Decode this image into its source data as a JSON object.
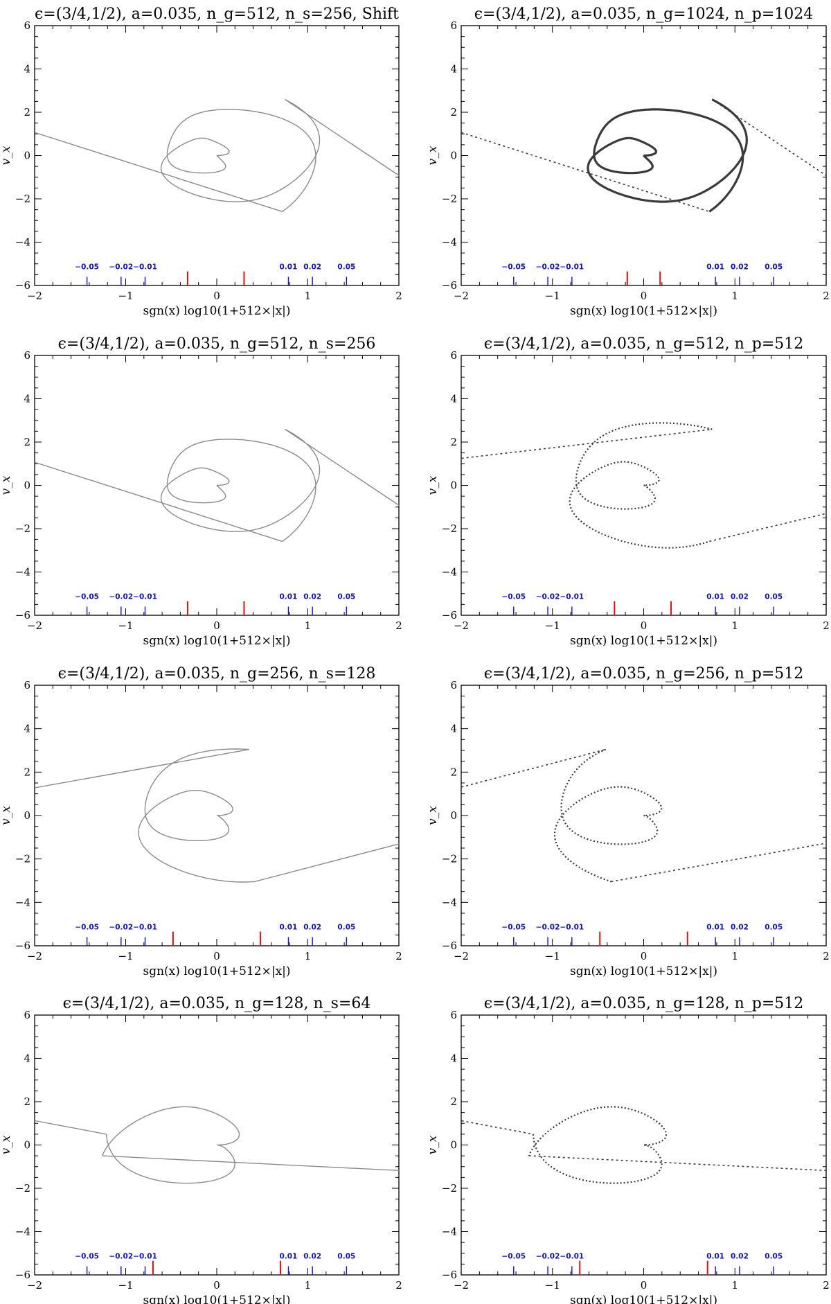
{
  "figure": {
    "xlabel": "sgn(x) log10(1+512×|x|)",
    "ylabel": "v_x",
    "xlim": [
      -2,
      2
    ],
    "ylim": [
      -6,
      6
    ],
    "xticks": [
      -2,
      -1,
      0,
      1,
      2
    ],
    "xtick_labels": [
      "−2",
      "−1",
      "0",
      "1",
      "2"
    ],
    "yticks": [
      -6,
      -4,
      -2,
      0,
      2,
      4,
      6
    ],
    "ytick_labels": [
      "−6",
      "−4",
      "−2",
      "0",
      "2",
      "4",
      "6"
    ]
  },
  "colors": {
    "sheet_curve": "#8a8a8a",
    "particles": "#3a3a3a",
    "grid_markers": "#e01010",
    "position_markers": "#1010d0",
    "axes": "#000000"
  },
  "position_markers": [
    {
      "label": "−0.05",
      "value": -0.05
    },
    {
      "label": "−0.02",
      "value": -0.02
    },
    {
      "label": "−0.01",
      "value": -0.01
    },
    {
      "label": "0.01",
      "value": 0.01
    },
    {
      "label": "0.02",
      "value": 0.02
    },
    {
      "label": "0.05",
      "value": 0.05
    }
  ],
  "chart_data": [
    {
      "type": "line",
      "method": "sheet",
      "title": "ϵ=(3/4,1/2), a=0.035, n_g=512, n_s=256, Shift",
      "ng": 512,
      "ns": 256,
      "shift": true,
      "red_markers_x": [
        -0.32,
        0.3
      ],
      "spiral_turns": 2.3
    },
    {
      "type": "scatter",
      "method": "particles",
      "title": "ϵ=(3/4,1/2), a=0.035, n_g=1024, n_p=1024",
      "ng": 1024,
      "np": 1024,
      "red_markers_x": [
        -0.18,
        0.18
      ],
      "spiral_turns": 2.3
    },
    {
      "type": "line",
      "method": "sheet",
      "title": "ϵ=(3/4,1/2), a=0.035, n_g=512, n_s=256",
      "ng": 512,
      "ns": 256,
      "shift": false,
      "red_markers_x": [
        -0.32,
        0.3
      ],
      "spiral_turns": 2.3
    },
    {
      "type": "scatter",
      "method": "particles",
      "title": "ϵ=(3/4,1/2), a=0.035, n_g=512, n_p=512",
      "ng": 512,
      "np": 512,
      "red_markers_x": [
        -0.32,
        0.3
      ],
      "spiral_turns": 1.7
    },
    {
      "type": "line",
      "method": "sheet",
      "title": "ϵ=(3/4,1/2), a=0.035, n_g=256, n_s=128",
      "ng": 256,
      "ns": 128,
      "shift": false,
      "red_markers_x": [
        -0.48,
        0.48
      ],
      "spiral_turns": 1.6
    },
    {
      "type": "scatter",
      "method": "particles",
      "title": "ϵ=(3/4,1/2), a=0.035, n_g=256, n_p=512",
      "ng": 256,
      "np": 512,
      "red_markers_x": [
        -0.48,
        0.48
      ],
      "spiral_turns": 1.4
    },
    {
      "type": "line",
      "method": "sheet",
      "title": "ϵ=(3/4,1/2), a=0.035, n_g=128, n_s=64",
      "ng": 128,
      "ns": 64,
      "shift": false,
      "red_markers_x": [
        -0.7,
        0.7
      ],
      "spiral_turns": 1.05
    },
    {
      "type": "scatter",
      "method": "particles",
      "title": "ϵ=(3/4,1/2), a=0.035, n_g=128, n_p=512",
      "ng": 128,
      "np": 512,
      "red_markers_x": [
        -0.7,
        0.7
      ],
      "spiral_turns": 1.05
    }
  ]
}
